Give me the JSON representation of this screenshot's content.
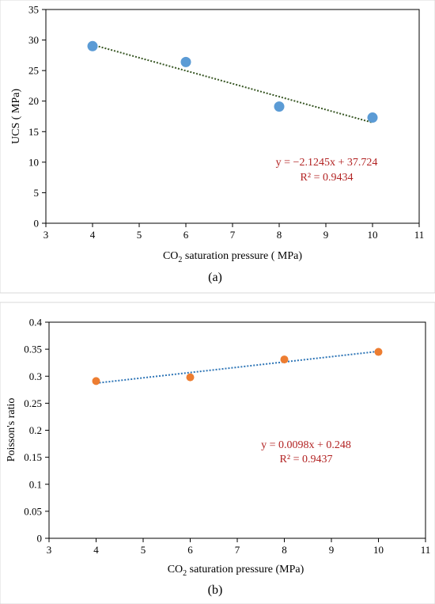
{
  "chart_data": [
    {
      "type": "scatter",
      "panel_label": "(a)",
      "xlabel": "CO2 saturation pressure ( MPa)",
      "xlabel_parts": {
        "pre": "CO",
        "sub": "2",
        "post": " saturation pressure ( MPa)"
      },
      "ylabel": "UCS ( MPa)",
      "xlim": [
        3,
        11
      ],
      "ylim": [
        0,
        35
      ],
      "xticks": [
        3,
        4,
        5,
        6,
        7,
        8,
        9,
        10,
        11
      ],
      "yticks": [
        0,
        5,
        10,
        15,
        20,
        25,
        30,
        35
      ],
      "series": [
        {
          "x": [
            4,
            6,
            8,
            10
          ],
          "y": [
            29.0,
            26.4,
            19.1,
            17.3
          ],
          "color": "#5b9bd5"
        }
      ],
      "trendline": {
        "slope": -2.1245,
        "intercept": 37.724,
        "color": "#375623",
        "style": "dotted"
      },
      "equation": "y = −2.1245x + 37.724",
      "r2": "R² = 0.9434",
      "grid": false,
      "frame": true
    },
    {
      "type": "scatter",
      "panel_label": "(b)",
      "xlabel": "CO2 saturation pressure (MPa)",
      "xlabel_parts": {
        "pre": "CO",
        "sub": "2",
        "post": " saturation pressure (MPa)"
      },
      "ylabel": "Poisson's ratio",
      "xlim": [
        3,
        11
      ],
      "ylim": [
        0,
        0.4
      ],
      "xticks": [
        3,
        4,
        5,
        6,
        7,
        8,
        9,
        10,
        11
      ],
      "yticks": [
        0,
        0.05,
        0.1,
        0.15,
        0.2,
        0.25,
        0.3,
        0.35,
        0.4
      ],
      "series": [
        {
          "x": [
            4,
            6,
            8,
            10
          ],
          "y": [
            0.291,
            0.298,
            0.331,
            0.345
          ],
          "color": "#ed7d31"
        }
      ],
      "trendline": {
        "slope": 0.0098,
        "intercept": 0.248,
        "color": "#2e75b6",
        "style": "dotted"
      },
      "equation": "y = 0.0098x + 0.248",
      "r2": "R² = 0.9437",
      "grid": false,
      "frame": true
    }
  ]
}
